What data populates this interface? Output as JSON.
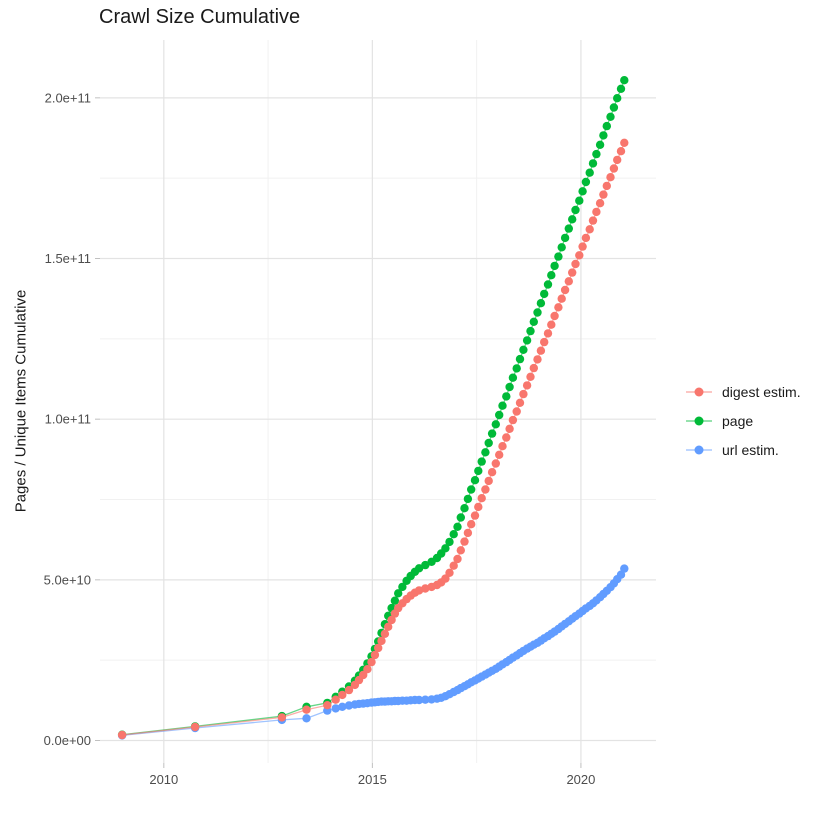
{
  "chart_data": {
    "type": "scatter",
    "title": "Crawl Size Cumulative",
    "xlabel": "",
    "ylabel": "Pages / Unique Items Cumulative",
    "y_unit": "pages, values stored in billions (1e9)",
    "xlim": [
      2008.47,
      2021.8
    ],
    "ylim": [
      -7,
      218
    ],
    "grid": true,
    "legend_position": "right",
    "x_ticks": {
      "values": [
        2010,
        2015,
        2020
      ],
      "labels": [
        "2010",
        "2015",
        "2020"
      ],
      "minor": [
        2012.5,
        2017.5
      ]
    },
    "y_ticks": {
      "values": [
        0,
        50,
        100,
        150,
        200
      ],
      "labels": [
        "0.0e+00",
        "5.0e+10",
        "1.0e+11",
        "1.5e+11",
        "2.0e+11"
      ],
      "minor": [
        25,
        75,
        125,
        175
      ]
    },
    "style": {
      "grid_major": "#E3E3E3",
      "grid_minor": "#F1F1F1",
      "tick_mark": "#C0C0C0",
      "tick_text": "#4D4D4D",
      "text": "#1A1A1A",
      "background": "#FFFFFF"
    },
    "draw_order": [
      1,
      2,
      0
    ],
    "series": [
      {
        "id": "digest",
        "name": "digest estim.",
        "color": "#F8766D",
        "points": [
          [
            2009.0,
            1.7
          ],
          [
            2010.75,
            4.2
          ],
          [
            2012.83,
            7.2
          ],
          [
            2013.42,
            9.6
          ],
          [
            2013.92,
            11.0
          ],
          [
            2014.12,
            12.7
          ],
          [
            2014.28,
            14.2
          ],
          [
            2014.44,
            15.7
          ],
          [
            2014.58,
            17.3
          ],
          [
            2014.68,
            18.8
          ],
          [
            2014.78,
            20.4
          ],
          [
            2014.88,
            22.2
          ],
          [
            2014.98,
            24.4
          ],
          [
            2015.06,
            26.6
          ],
          [
            2015.14,
            28.8
          ],
          [
            2015.22,
            31.0
          ],
          [
            2015.3,
            33.2
          ],
          [
            2015.38,
            35.4
          ],
          [
            2015.46,
            37.5
          ],
          [
            2015.54,
            39.5
          ],
          [
            2015.62,
            41.2
          ],
          [
            2015.72,
            42.7
          ],
          [
            2015.82,
            44.0
          ],
          [
            2015.92,
            45.1
          ],
          [
            2016.02,
            46.0
          ],
          [
            2016.12,
            46.7
          ],
          [
            2016.27,
            47.3
          ],
          [
            2016.42,
            47.8
          ],
          [
            2016.55,
            48.4
          ],
          [
            2016.65,
            49.2
          ],
          [
            2016.75,
            50.4
          ],
          [
            2016.85,
            52.2
          ],
          [
            2016.95,
            54.4
          ],
          [
            2017.04,
            56.5
          ],
          [
            2017.12,
            59.2
          ],
          [
            2017.21,
            61.9
          ],
          [
            2017.29,
            64.6
          ],
          [
            2017.37,
            67.3
          ],
          [
            2017.46,
            70.0
          ],
          [
            2017.54,
            72.7
          ],
          [
            2017.62,
            75.4
          ],
          [
            2017.71,
            78.1
          ],
          [
            2017.79,
            80.8
          ],
          [
            2017.87,
            83.5
          ],
          [
            2017.96,
            86.2
          ],
          [
            2018.04,
            88.9
          ],
          [
            2018.12,
            91.6
          ],
          [
            2018.21,
            94.3
          ],
          [
            2018.29,
            97.0
          ],
          [
            2018.37,
            99.7
          ],
          [
            2018.46,
            102.4
          ],
          [
            2018.54,
            105.1
          ],
          [
            2018.62,
            107.8
          ],
          [
            2018.71,
            110.5
          ],
          [
            2018.79,
            113.2
          ],
          [
            2018.87,
            115.9
          ],
          [
            2018.96,
            118.6
          ],
          [
            2019.04,
            121.3
          ],
          [
            2019.12,
            124.0
          ],
          [
            2019.21,
            126.7
          ],
          [
            2019.29,
            129.4
          ],
          [
            2019.37,
            132.1
          ],
          [
            2019.46,
            134.8
          ],
          [
            2019.54,
            137.5
          ],
          [
            2019.62,
            140.2
          ],
          [
            2019.71,
            142.9
          ],
          [
            2019.79,
            145.6
          ],
          [
            2019.87,
            148.3
          ],
          [
            2019.96,
            151.0
          ],
          [
            2020.04,
            153.7
          ],
          [
            2020.12,
            156.4
          ],
          [
            2020.21,
            159.1
          ],
          [
            2020.29,
            161.8
          ],
          [
            2020.37,
            164.5
          ],
          [
            2020.46,
            167.2
          ],
          [
            2020.54,
            169.9
          ],
          [
            2020.62,
            172.6
          ],
          [
            2020.71,
            175.3
          ],
          [
            2020.79,
            178.0
          ],
          [
            2020.87,
            180.7
          ],
          [
            2020.96,
            183.4
          ],
          [
            2021.04,
            186.0
          ]
        ]
      },
      {
        "id": "page",
        "name": "page",
        "color": "#00BA38",
        "points": [
          [
            2009.0,
            1.8
          ],
          [
            2010.75,
            4.4
          ],
          [
            2012.83,
            7.6
          ],
          [
            2013.42,
            10.5
          ],
          [
            2013.92,
            11.7
          ],
          [
            2014.12,
            13.6
          ],
          [
            2014.28,
            15.2
          ],
          [
            2014.44,
            16.8
          ],
          [
            2014.58,
            18.6
          ],
          [
            2014.68,
            20.2
          ],
          [
            2014.78,
            22.0
          ],
          [
            2014.88,
            24.0
          ],
          [
            2014.98,
            26.2
          ],
          [
            2015.06,
            28.5
          ],
          [
            2015.14,
            30.8
          ],
          [
            2015.22,
            33.5
          ],
          [
            2015.3,
            36.2
          ],
          [
            2015.38,
            38.8
          ],
          [
            2015.46,
            41.2
          ],
          [
            2015.54,
            43.5
          ],
          [
            2015.62,
            45.8
          ],
          [
            2015.72,
            47.8
          ],
          [
            2015.82,
            49.7
          ],
          [
            2015.92,
            51.2
          ],
          [
            2016.02,
            52.5
          ],
          [
            2016.12,
            53.6
          ],
          [
            2016.27,
            54.6
          ],
          [
            2016.42,
            55.6
          ],
          [
            2016.55,
            56.8
          ],
          [
            2016.65,
            58.2
          ],
          [
            2016.75,
            59.8
          ],
          [
            2016.85,
            61.8
          ],
          [
            2016.95,
            64.2
          ],
          [
            2017.04,
            66.5
          ],
          [
            2017.12,
            69.4
          ],
          [
            2017.21,
            72.3
          ],
          [
            2017.29,
            75.2
          ],
          [
            2017.37,
            78.1
          ],
          [
            2017.46,
            81.0
          ],
          [
            2017.54,
            83.9
          ],
          [
            2017.62,
            86.8
          ],
          [
            2017.71,
            89.7
          ],
          [
            2017.79,
            92.6
          ],
          [
            2017.87,
            95.5
          ],
          [
            2017.96,
            98.4
          ],
          [
            2018.04,
            101.3
          ],
          [
            2018.12,
            104.2
          ],
          [
            2018.21,
            107.1
          ],
          [
            2018.29,
            110.0
          ],
          [
            2018.37,
            112.9
          ],
          [
            2018.46,
            115.8
          ],
          [
            2018.54,
            118.7
          ],
          [
            2018.62,
            121.6
          ],
          [
            2018.71,
            124.5
          ],
          [
            2018.79,
            127.4
          ],
          [
            2018.87,
            130.3
          ],
          [
            2018.96,
            133.2
          ],
          [
            2019.04,
            136.1
          ],
          [
            2019.12,
            139.0
          ],
          [
            2019.21,
            141.9
          ],
          [
            2019.29,
            144.8
          ],
          [
            2019.37,
            147.7
          ],
          [
            2019.46,
            150.6
          ],
          [
            2019.54,
            153.5
          ],
          [
            2019.62,
            156.4
          ],
          [
            2019.71,
            159.3
          ],
          [
            2019.79,
            162.2
          ],
          [
            2019.87,
            165.1
          ],
          [
            2019.96,
            168.0
          ],
          [
            2020.04,
            170.9
          ],
          [
            2020.12,
            173.8
          ],
          [
            2020.21,
            176.7
          ],
          [
            2020.29,
            179.6
          ],
          [
            2020.37,
            182.5
          ],
          [
            2020.46,
            185.4
          ],
          [
            2020.54,
            188.3
          ],
          [
            2020.62,
            191.2
          ],
          [
            2020.71,
            194.1
          ],
          [
            2020.79,
            197.0
          ],
          [
            2020.87,
            199.9
          ],
          [
            2020.96,
            202.8
          ],
          [
            2021.04,
            205.5
          ]
        ]
      },
      {
        "id": "url",
        "name": "url estim.",
        "color": "#619CFF",
        "points": [
          [
            2009.0,
            1.6
          ],
          [
            2010.75,
            3.9
          ],
          [
            2012.83,
            6.4
          ],
          [
            2013.42,
            6.9
          ],
          [
            2013.92,
            9.3
          ],
          [
            2014.12,
            10.0
          ],
          [
            2014.28,
            10.5
          ],
          [
            2014.44,
            10.9
          ],
          [
            2014.58,
            11.2
          ],
          [
            2014.68,
            11.4
          ],
          [
            2014.78,
            11.5
          ],
          [
            2014.88,
            11.6
          ],
          [
            2014.98,
            11.8
          ],
          [
            2015.06,
            11.9
          ],
          [
            2015.14,
            12.0
          ],
          [
            2015.22,
            12.1
          ],
          [
            2015.3,
            12.1
          ],
          [
            2015.38,
            12.2
          ],
          [
            2015.46,
            12.2
          ],
          [
            2015.54,
            12.3
          ],
          [
            2015.62,
            12.3
          ],
          [
            2015.72,
            12.4
          ],
          [
            2015.82,
            12.4
          ],
          [
            2015.92,
            12.5
          ],
          [
            2016.02,
            12.6
          ],
          [
            2016.12,
            12.6
          ],
          [
            2016.27,
            12.7
          ],
          [
            2016.42,
            12.8
          ],
          [
            2016.55,
            13.0
          ],
          [
            2016.65,
            13.3
          ],
          [
            2016.75,
            13.8
          ],
          [
            2016.85,
            14.4
          ],
          [
            2016.95,
            15.1
          ],
          [
            2017.04,
            15.7
          ],
          [
            2017.12,
            16.3
          ],
          [
            2017.21,
            16.9
          ],
          [
            2017.29,
            17.5
          ],
          [
            2017.37,
            18.1
          ],
          [
            2017.46,
            18.7
          ],
          [
            2017.54,
            19.3
          ],
          [
            2017.62,
            19.9
          ],
          [
            2017.71,
            20.5
          ],
          [
            2017.79,
            21.1
          ],
          [
            2017.87,
            21.7
          ],
          [
            2017.96,
            22.3
          ],
          [
            2018.04,
            23.0
          ],
          [
            2018.12,
            23.7
          ],
          [
            2018.21,
            24.4
          ],
          [
            2018.29,
            25.1
          ],
          [
            2018.37,
            25.8
          ],
          [
            2018.46,
            26.5
          ],
          [
            2018.54,
            27.2
          ],
          [
            2018.62,
            27.9
          ],
          [
            2018.71,
            28.6
          ],
          [
            2018.79,
            29.2
          ],
          [
            2018.87,
            29.8
          ],
          [
            2018.96,
            30.4
          ],
          [
            2019.04,
            31.1
          ],
          [
            2019.12,
            31.8
          ],
          [
            2019.21,
            32.5
          ],
          [
            2019.29,
            33.2
          ],
          [
            2019.37,
            33.9
          ],
          [
            2019.46,
            34.7
          ],
          [
            2019.54,
            35.5
          ],
          [
            2019.62,
            36.3
          ],
          [
            2019.71,
            37.1
          ],
          [
            2019.79,
            37.9
          ],
          [
            2019.87,
            38.7
          ],
          [
            2019.96,
            39.5
          ],
          [
            2020.04,
            40.3
          ],
          [
            2020.12,
            41.1
          ],
          [
            2020.21,
            41.9
          ],
          [
            2020.29,
            42.7
          ],
          [
            2020.37,
            43.6
          ],
          [
            2020.46,
            44.6
          ],
          [
            2020.54,
            45.6
          ],
          [
            2020.62,
            46.6
          ],
          [
            2020.71,
            47.7
          ],
          [
            2020.79,
            48.9
          ],
          [
            2020.87,
            50.2
          ],
          [
            2020.96,
            51.6
          ],
          [
            2021.04,
            53.5
          ]
        ]
      }
    ]
  },
  "legend": {
    "items": [
      {
        "label": "digest estim."
      },
      {
        "label": "page"
      },
      {
        "label": "url estim."
      }
    ]
  }
}
